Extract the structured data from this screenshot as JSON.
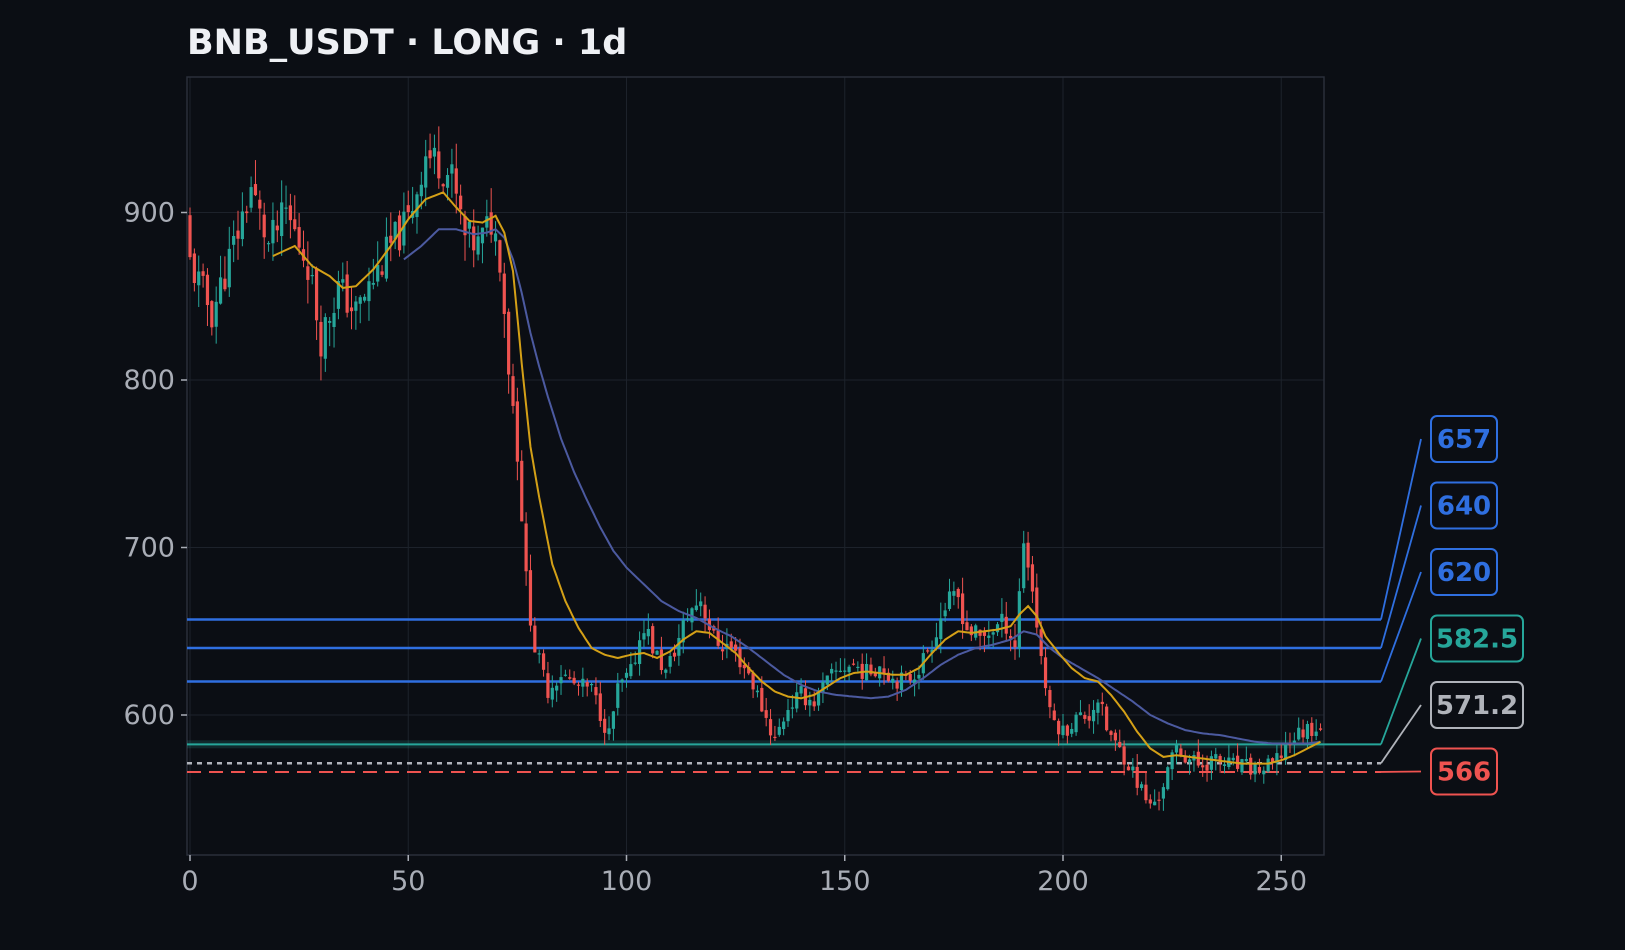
{
  "title": "BNB_USDT · LONG · 1d",
  "chart_data": {
    "type": "candlestick",
    "title": "BNB_USDT · LONG · 1d",
    "xlabel": "",
    "ylabel": "",
    "xlim": [
      0,
      260
    ],
    "ylim": [
      515,
      980
    ],
    "x_ticks": [
      0,
      50,
      100,
      150,
      200,
      250
    ],
    "y_ticks": [
      600,
      700,
      800,
      900
    ],
    "grid": true,
    "colors": {
      "background": "#0b0e14",
      "up": "#26a69a",
      "down": "#ef5350",
      "ma_fast": "#d4a017",
      "ma_slow": "#4c5aa0",
      "target": "#2f6fe0",
      "entry": "#26a69a",
      "current": "#b0b3ba",
      "stop": "#ef5350"
    },
    "close_anchors": [
      [
        0,
        870
      ],
      [
        5,
        840
      ],
      [
        10,
        880
      ],
      [
        14,
        915
      ],
      [
        18,
        880
      ],
      [
        22,
        900
      ],
      [
        27,
        870
      ],
      [
        30,
        825
      ],
      [
        34,
        855
      ],
      [
        38,
        840
      ],
      [
        42,
        860
      ],
      [
        46,
        880
      ],
      [
        50,
        895
      ],
      [
        54,
        935
      ],
      [
        57,
        930
      ],
      [
        60,
        920
      ],
      [
        63,
        885
      ],
      [
        66,
        880
      ],
      [
        69,
        895
      ],
      [
        71,
        875
      ],
      [
        73,
        810
      ],
      [
        75,
        760
      ],
      [
        77,
        680
      ],
      [
        79,
        640
      ],
      [
        82,
        615
      ],
      [
        85,
        625
      ],
      [
        88,
        618
      ],
      [
        92,
        615
      ],
      [
        96,
        588
      ],
      [
        98,
        615
      ],
      [
        101,
        625
      ],
      [
        104,
        655
      ],
      [
        106,
        640
      ],
      [
        109,
        625
      ],
      [
        112,
        645
      ],
      [
        114,
        660
      ],
      [
        117,
        670
      ],
      [
        120,
        645
      ],
      [
        124,
        640
      ],
      [
        128,
        625
      ],
      [
        131,
        605
      ],
      [
        134,
        585
      ],
      [
        137,
        605
      ],
      [
        140,
        612
      ],
      [
        143,
        608
      ],
      [
        146,
        620
      ],
      [
        149,
        628
      ],
      [
        152,
        630
      ],
      [
        155,
        625
      ],
      [
        158,
        630
      ],
      [
        161,
        622
      ],
      [
        164,
        620
      ],
      [
        167,
        628
      ],
      [
        170,
        645
      ],
      [
        173,
        665
      ],
      [
        176,
        670
      ],
      [
        178,
        652
      ],
      [
        181,
        645
      ],
      [
        184,
        652
      ],
      [
        187,
        655
      ],
      [
        189,
        642
      ],
      [
        191,
        705
      ],
      [
        193,
        675
      ],
      [
        195,
        635
      ],
      [
        197,
        600
      ],
      [
        200,
        590
      ],
      [
        203,
        598
      ],
      [
        206,
        600
      ],
      [
        208,
        610
      ],
      [
        210,
        592
      ],
      [
        212,
        582
      ],
      [
        214,
        576
      ],
      [
        216,
        566
      ],
      [
        218,
        555
      ],
      [
        220,
        545
      ],
      [
        222,
        552
      ],
      [
        224,
        566
      ],
      [
        226,
        580
      ],
      [
        228,
        576
      ],
      [
        231,
        570
      ],
      [
        234,
        573
      ],
      [
        237,
        571
      ],
      [
        240,
        569
      ],
      [
        243,
        568
      ],
      [
        246,
        567
      ],
      [
        249,
        572
      ],
      [
        251,
        582
      ],
      [
        253,
        587
      ],
      [
        256,
        592
      ],
      [
        259,
        594
      ]
    ],
    "ma_fast_anchors": [
      [
        19,
        874
      ],
      [
        24,
        880
      ],
      [
        28,
        868
      ],
      [
        32,
        862
      ],
      [
        35,
        855
      ],
      [
        38,
        856
      ],
      [
        42,
        866
      ],
      [
        46,
        880
      ],
      [
        50,
        896
      ],
      [
        54,
        908
      ],
      [
        58,
        912
      ],
      [
        61,
        903
      ],
      [
        64,
        895
      ],
      [
        67,
        894
      ],
      [
        70,
        898
      ],
      [
        72,
        888
      ],
      [
        74,
        865
      ],
      [
        76,
        810
      ],
      [
        78,
        760
      ],
      [
        80,
        730
      ],
      [
        83,
        690
      ],
      [
        86,
        668
      ],
      [
        89,
        652
      ],
      [
        92,
        640
      ],
      [
        95,
        636
      ],
      [
        98,
        634
      ],
      [
        101,
        636
      ],
      [
        104,
        637
      ],
      [
        107,
        634
      ],
      [
        110,
        638
      ],
      [
        113,
        645
      ],
      [
        116,
        650
      ],
      [
        119,
        649
      ],
      [
        122,
        643
      ],
      [
        125,
        637
      ],
      [
        128,
        628
      ],
      [
        131,
        620
      ],
      [
        134,
        614
      ],
      [
        137,
        611
      ],
      [
        140,
        610
      ],
      [
        143,
        612
      ],
      [
        146,
        617
      ],
      [
        149,
        622
      ],
      [
        152,
        625
      ],
      [
        155,
        626
      ],
      [
        158,
        625
      ],
      [
        161,
        624
      ],
      [
        164,
        624
      ],
      [
        167,
        628
      ],
      [
        170,
        637
      ],
      [
        173,
        645
      ],
      [
        176,
        650
      ],
      [
        179,
        649
      ],
      [
        182,
        650
      ],
      [
        185,
        651
      ],
      [
        188,
        653
      ],
      [
        190,
        660
      ],
      [
        192,
        665
      ],
      [
        194,
        659
      ],
      [
        196,
        647
      ],
      [
        199,
        637
      ],
      [
        202,
        628
      ],
      [
        205,
        622
      ],
      [
        208,
        620
      ],
      [
        211,
        612
      ],
      [
        214,
        602
      ],
      [
        217,
        590
      ],
      [
        220,
        580
      ],
      [
        223,
        575
      ],
      [
        226,
        576
      ],
      [
        229,
        575
      ],
      [
        232,
        574
      ],
      [
        235,
        573
      ],
      [
        238,
        572
      ],
      [
        241,
        571
      ],
      [
        244,
        571
      ],
      [
        247,
        571
      ],
      [
        250,
        573
      ],
      [
        253,
        576
      ],
      [
        256,
        580
      ],
      [
        259,
        584
      ]
    ],
    "ma_slow_anchors": [
      [
        49,
        872
      ],
      [
        53,
        880
      ],
      [
        57,
        890
      ],
      [
        61,
        890
      ],
      [
        65,
        887
      ],
      [
        68,
        888
      ],
      [
        70,
        890
      ],
      [
        72,
        885
      ],
      [
        74,
        872
      ],
      [
        76,
        852
      ],
      [
        78,
        828
      ],
      [
        80,
        808
      ],
      [
        82,
        790
      ],
      [
        85,
        765
      ],
      [
        88,
        745
      ],
      [
        91,
        728
      ],
      [
        94,
        712
      ],
      [
        97,
        698
      ],
      [
        100,
        688
      ],
      [
        104,
        678
      ],
      [
        108,
        668
      ],
      [
        112,
        662
      ],
      [
        116,
        658
      ],
      [
        120,
        652
      ],
      [
        124,
        647
      ],
      [
        128,
        640
      ],
      [
        132,
        632
      ],
      [
        136,
        624
      ],
      [
        140,
        618
      ],
      [
        144,
        614
      ],
      [
        148,
        612
      ],
      [
        152,
        611
      ],
      [
        156,
        610
      ],
      [
        160,
        611
      ],
      [
        164,
        615
      ],
      [
        168,
        622
      ],
      [
        172,
        630
      ],
      [
        176,
        636
      ],
      [
        180,
        640
      ],
      [
        184,
        642
      ],
      [
        188,
        645
      ],
      [
        191,
        650
      ],
      [
        194,
        648
      ],
      [
        197,
        640
      ],
      [
        200,
        634
      ],
      [
        204,
        628
      ],
      [
        208,
        622
      ],
      [
        212,
        615
      ],
      [
        216,
        608
      ],
      [
        220,
        600
      ],
      [
        224,
        595
      ],
      [
        228,
        591
      ],
      [
        232,
        589
      ],
      [
        236,
        588
      ],
      [
        240,
        586
      ],
      [
        244,
        584
      ],
      [
        248,
        583
      ],
      [
        252,
        583
      ],
      [
        256,
        583
      ],
      [
        259,
        584
      ]
    ],
    "levels": [
      {
        "label": "657",
        "value": 657,
        "kind": "target",
        "style": "solid"
      },
      {
        "label": "640",
        "value": 640,
        "kind": "target",
        "style": "solid"
      },
      {
        "label": "620",
        "value": 620,
        "kind": "target",
        "style": "solid"
      },
      {
        "label": "582.5",
        "value": 582.5,
        "kind": "entry",
        "style": "solid"
      },
      {
        "label": "571.2",
        "value": 571.2,
        "kind": "current",
        "style": "dotted"
      },
      {
        "label": "566",
        "value": 566,
        "kind": "stop",
        "style": "dashed"
      }
    ]
  }
}
